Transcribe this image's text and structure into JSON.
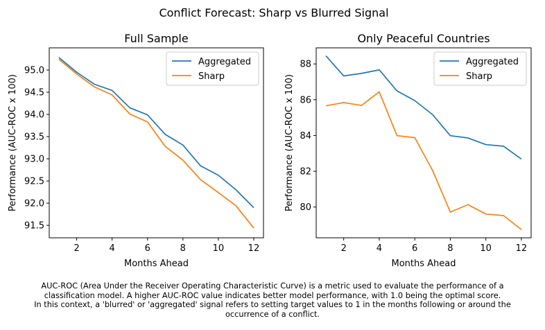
{
  "suptitle": "Conflict Forecast: Sharp vs Blurred Signal",
  "caption": [
    "AUC-ROC (Area Under the Receiver Operating Characteristic Curve) is a metric used to evaluate the performance of a",
    "classification model. A higher AUC-ROC value indicates better model performance, with 1.0 being the optimal score.",
    "In this context, a 'blurred' or 'aggregated' signal refers to setting target values to 1 in the months following or around the",
    "occurrence of a conflict."
  ],
  "colors": {
    "aggregated": "#1f77b4",
    "sharp": "#ff7f0e"
  },
  "chart_data": [
    {
      "type": "line",
      "title": "Full Sample",
      "xlabel": "Months Ahead",
      "ylabel": "Performance (AUC-ROC x 100)",
      "x": [
        1,
        2,
        3,
        4,
        5,
        6,
        7,
        8,
        9,
        10,
        11,
        12
      ],
      "xlim": [
        0.45,
        12.55
      ],
      "ylim": [
        91.22,
        95.5
      ],
      "xticks": [
        2,
        4,
        6,
        8,
        10,
        12
      ],
      "yticks": [
        91.5,
        92.0,
        92.5,
        93.0,
        93.5,
        94.0,
        94.5,
        95.0
      ],
      "ytick_labels": [
        "91.5",
        "92.0",
        "92.5",
        "93.0",
        "93.5",
        "94.0",
        "94.5",
        "95.0"
      ],
      "legend": "top-right",
      "series": [
        {
          "name": "Aggregated",
          "values": [
            95.28,
            94.95,
            94.68,
            94.54,
            94.15,
            93.99,
            93.55,
            93.31,
            92.84,
            92.63,
            92.3,
            91.9
          ]
        },
        {
          "name": "Sharp",
          "values": [
            95.24,
            94.91,
            94.62,
            94.44,
            94.01,
            93.83,
            93.28,
            92.97,
            92.53,
            92.24,
            91.94,
            91.44
          ]
        }
      ]
    },
    {
      "type": "line",
      "title": "Only Peaceful Countries",
      "xlabel": "Months Ahead",
      "ylabel": "Performance (AUC-ROC x 100)",
      "x": [
        1,
        2,
        3,
        4,
        5,
        6,
        7,
        8,
        9,
        10,
        11,
        12
      ],
      "xlim": [
        0.45,
        12.55
      ],
      "ylim": [
        78.28,
        88.9
      ],
      "xticks": [
        2,
        4,
        6,
        8,
        10,
        12
      ],
      "yticks": [
        80,
        82,
        84,
        86,
        88
      ],
      "ytick_labels": [
        "80",
        "82",
        "84",
        "86",
        "88"
      ],
      "legend": "top-right",
      "series": [
        {
          "name": "Aggregated",
          "values": [
            88.45,
            87.33,
            87.47,
            87.67,
            86.49,
            85.95,
            85.17,
            83.99,
            83.86,
            83.49,
            83.4,
            82.68
          ]
        },
        {
          "name": "Sharp",
          "values": [
            85.66,
            85.84,
            85.68,
            86.44,
            83.99,
            83.88,
            82.05,
            79.72,
            80.13,
            79.61,
            79.52,
            78.74
          ]
        }
      ]
    }
  ]
}
